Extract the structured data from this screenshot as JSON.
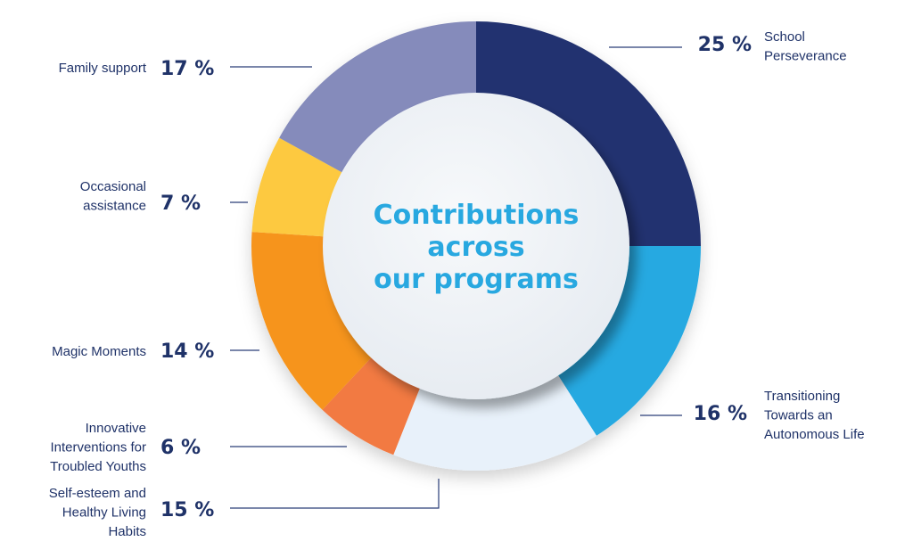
{
  "chart_data": {
    "type": "pie",
    "style": "donut",
    "title": "Contributions across our programs",
    "title_lines": [
      "Contributions",
      "across",
      "our programs"
    ],
    "unit": "%",
    "slices": [
      {
        "label": "School Perseverance",
        "label_lines": [
          "School",
          "Perseverance"
        ],
        "value": 25,
        "value_text": "25 %",
        "color": "#213370"
      },
      {
        "label": "Transitioning Towards an Autonomous Life",
        "label_lines": [
          "Transitioning",
          "Towards an",
          "Autonomous Life"
        ],
        "value": 16,
        "value_text": "16 %",
        "color": "#27a9e1"
      },
      {
        "label": "Self-esteem and Healthy Living Habits",
        "label_lines": [
          "Self-esteem and",
          "Healthy Living",
          "Habits"
        ],
        "value": 15,
        "value_text": "15 %",
        "color": "#e8f1fa"
      },
      {
        "label": "Innovative Interventions for Troubled Youths",
        "label_lines": [
          "Innovative",
          "Interventions for",
          "Troubled Youths"
        ],
        "value": 6,
        "value_text": "6 %",
        "color": "#f27a43"
      },
      {
        "label": "Magic Moments",
        "label_lines": [
          "Magic Moments"
        ],
        "value": 14,
        "value_text": "14 %",
        "color": "#f6941f"
      },
      {
        "label": "Occasional assistance",
        "label_lines": [
          "Occasional",
          "assistance"
        ],
        "value": 7,
        "value_text": "7 %",
        "color": "#fdc93f"
      },
      {
        "label": "Family support",
        "label_lines": [
          "Family support"
        ],
        "value": 17,
        "value_text": "17 %",
        "color": "#858bbb"
      }
    ],
    "center_color": "#f0f3f7",
    "text_color": "#1f3268",
    "title_color": "#28a8e0"
  }
}
